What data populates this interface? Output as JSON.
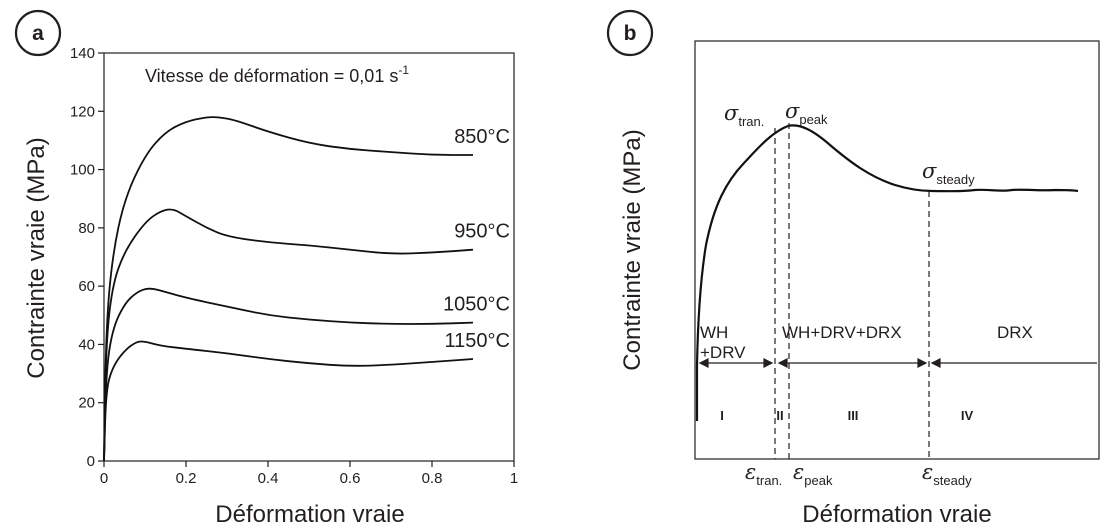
{
  "chart_data": [
    {
      "panel": "a",
      "type": "line",
      "annotation": {
        "text": "Vitesse de déformation = 0,01 s",
        "sup": "-1"
      },
      "xlabel": "Déformation vraie",
      "ylabel": "Contrainte vraie (MPa)",
      "xlim": [
        0,
        1
      ],
      "ylim": [
        0,
        140
      ],
      "xticks": [
        "0",
        "0.2",
        "0.4",
        "0.6",
        "0.8",
        "1"
      ],
      "yticks": [
        "0",
        "20",
        "40",
        "60",
        "80",
        "100",
        "120",
        "140"
      ],
      "series": [
        {
          "name": "850°C",
          "x": [
            0,
            0.005,
            0.02,
            0.05,
            0.1,
            0.15,
            0.2,
            0.25,
            0.28,
            0.32,
            0.4,
            0.5,
            0.6,
            0.7,
            0.8,
            0.9
          ],
          "y": [
            0,
            45,
            70,
            90,
            105,
            113,
            116.5,
            118,
            118,
            117,
            113,
            109,
            107,
            106,
            105,
            105
          ]
        },
        {
          "name": "950°C",
          "x": [
            0,
            0.005,
            0.02,
            0.05,
            0.1,
            0.14,
            0.17,
            0.2,
            0.25,
            0.3,
            0.4,
            0.5,
            0.6,
            0.7,
            0.8,
            0.9
          ],
          "y": [
            0,
            40,
            60,
            72,
            82,
            86,
            86.5,
            84,
            80,
            77,
            75,
            74,
            72.5,
            71,
            71.5,
            72.5
          ]
        },
        {
          "name": "1050°C",
          "x": [
            0,
            0.005,
            0.02,
            0.05,
            0.08,
            0.11,
            0.15,
            0.2,
            0.3,
            0.4,
            0.5,
            0.6,
            0.7,
            0.8,
            0.9
          ],
          "y": [
            0,
            30,
            45,
            54,
            58,
            59.5,
            58,
            56,
            53,
            50,
            48.5,
            47.5,
            47,
            47,
            47.5
          ]
        },
        {
          "name": "1150°C",
          "x": [
            0,
            0.005,
            0.02,
            0.05,
            0.08,
            0.1,
            0.14,
            0.2,
            0.3,
            0.4,
            0.5,
            0.6,
            0.7,
            0.8,
            0.9
          ],
          "y": [
            0,
            24,
            32,
            38,
            41,
            41,
            39.5,
            38.5,
            37,
            35,
            33.5,
            32.5,
            33,
            34,
            35
          ]
        }
      ]
    },
    {
      "panel": "b",
      "type": "line",
      "xlabel": "Déformation vraie",
      "ylabel": "Contrainte vraie (MPa)",
      "stress_labels": [
        {
          "sym": "σ",
          "sub": "tran."
        },
        {
          "sym": "σ",
          "sub": "peak"
        },
        {
          "sym": "σ",
          "sub": "steady"
        }
      ],
      "strain_labels": [
        {
          "sym": "ε",
          "sub": "tran."
        },
        {
          "sym": "ε",
          "sub": "peak"
        },
        {
          "sym": "ε",
          "sub": "steady"
        }
      ],
      "regions": [
        {
          "label": "WH\n+DRV",
          "numeral": "I"
        },
        {
          "label": "WH+DRV+DRX",
          "numeral": "II"
        },
        {
          "label": "",
          "numeral": "III"
        },
        {
          "label": "DRX",
          "numeral": "IV"
        }
      ]
    }
  ]
}
